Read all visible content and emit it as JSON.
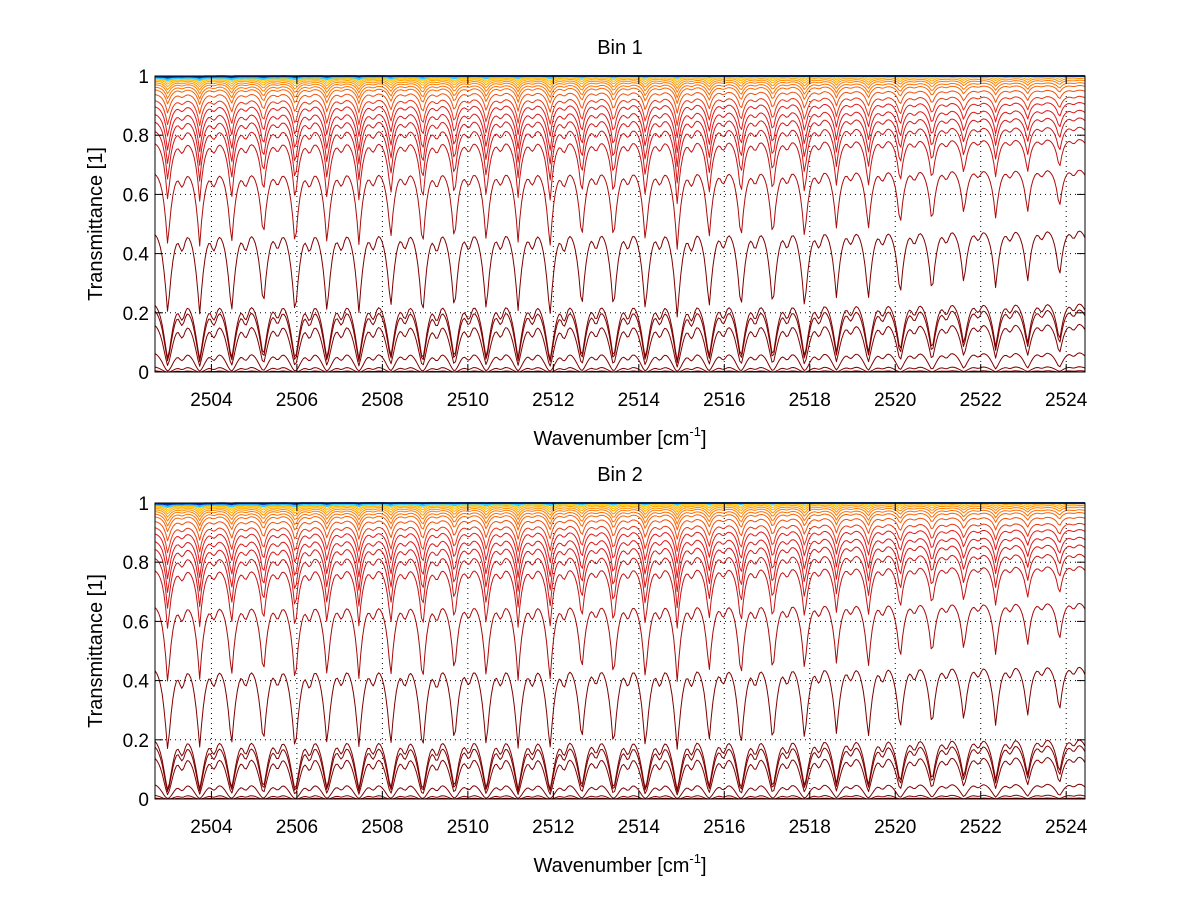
{
  "chart_data": [
    {
      "type": "line",
      "title": "Bin 1",
      "xlabel": "Wavenumber [cm",
      "xlabel_sup": "-1",
      "xlabel_end": "]",
      "ylabel": "Transmittance [1]",
      "xlim": [
        2502.68,
        2524.44
      ],
      "ylim": [
        0,
        1
      ],
      "xticks": [
        2504,
        2506,
        2508,
        2510,
        2512,
        2514,
        2516,
        2518,
        2520,
        2522,
        2524
      ],
      "yticks": [
        0,
        0.2,
        0.4,
        0.6,
        0.8,
        1
      ],
      "ytick_labels": [
        "0",
        "0.2",
        "0.4",
        "0.6",
        "0.8",
        "1"
      ],
      "grid": true,
      "grid_style": "dotted",
      "series_description": "Family of transmittance spectra; each series defined by its continuum transmittance level",
      "series_continuum": [
        0.999,
        0.998,
        0.997,
        0.996,
        0.995,
        0.993,
        0.99,
        0.987,
        0.983,
        0.978,
        0.972,
        0.964,
        0.955,
        0.94,
        0.92,
        0.9,
        0.875,
        0.85,
        0.82,
        0.78,
        0.68,
        0.48,
        0.24,
        0.22,
        0.17,
        0.07,
        0.02,
        0.005
      ],
      "lines": {
        "first_center": 2502.98,
        "spacing": 0.745,
        "count": 30
      },
      "depth_trend": "constant up to ~2516, weakening toward 2524",
      "colors": {
        "low": "#7f0000",
        "mid": "#e31a1c",
        "orange": "#ff8000",
        "yellow": "#ffd700",
        "cyan": "#33ccff",
        "blue": "#0033aa"
      }
    },
    {
      "type": "line",
      "title": "Bin 2",
      "xlabel": "Wavenumber [cm",
      "xlabel_sup": "-1",
      "xlabel_end": "]",
      "ylabel": "Transmittance [1]",
      "xlim": [
        2502.68,
        2524.44
      ],
      "ylim": [
        0,
        1
      ],
      "xticks": [
        2504,
        2506,
        2508,
        2510,
        2512,
        2514,
        2516,
        2518,
        2520,
        2522,
        2524
      ],
      "yticks": [
        0,
        0.2,
        0.4,
        0.6,
        0.8,
        1
      ],
      "ytick_labels": [
        "0",
        "0.2",
        "0.4",
        "0.6",
        "0.8",
        "1"
      ],
      "grid": true,
      "grid_style": "dotted",
      "series_description": "Family of transmittance spectra; each series defined by its continuum transmittance level",
      "series_continuum": [
        0.999,
        0.998,
        0.997,
        0.996,
        0.995,
        0.993,
        0.99,
        0.987,
        0.983,
        0.978,
        0.972,
        0.964,
        0.955,
        0.94,
        0.92,
        0.9,
        0.875,
        0.85,
        0.82,
        0.78,
        0.66,
        0.45,
        0.21,
        0.19,
        0.15,
        0.055,
        0.015,
        0.004
      ],
      "lines": {
        "first_center": 2502.98,
        "spacing": 0.745,
        "count": 30
      },
      "depth_trend": "constant up to ~2516, weakening toward 2524",
      "colors": {
        "low": "#7f0000",
        "mid": "#e31a1c",
        "orange": "#ff8000",
        "yellow": "#ffd700",
        "cyan": "#33ccff",
        "blue": "#0033aa"
      }
    }
  ]
}
